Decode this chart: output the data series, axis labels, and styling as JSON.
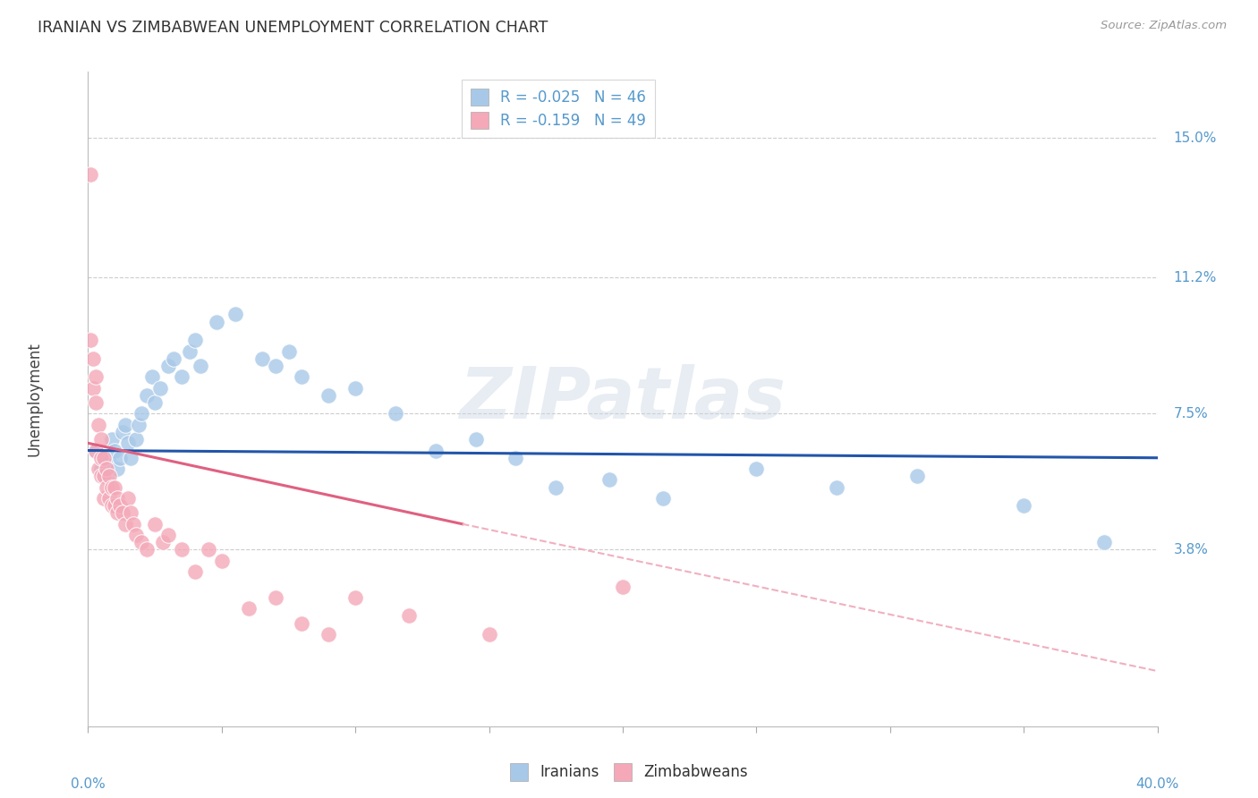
{
  "title": "IRANIAN VS ZIMBABWEAN UNEMPLOYMENT CORRELATION CHART",
  "source": "Source: ZipAtlas.com",
  "ylabel": "Unemployment",
  "ytick_labels": [
    "15.0%",
    "11.2%",
    "7.5%",
    "3.8%"
  ],
  "ytick_values": [
    0.15,
    0.112,
    0.075,
    0.038
  ],
  "xlim": [
    0.0,
    0.4
  ],
  "ylim": [
    -0.01,
    0.168
  ],
  "legend_line1": "R = -0.025   N = 46",
  "legend_line2": "R = -0.159   N = 49",
  "watermark": "ZIPatlas",
  "iranian_color": "#a8c8e8",
  "zimbabwean_color": "#f4a8b8",
  "iranian_line_color": "#2255aa",
  "zimbabwean_line_solid_color": "#e06080",
  "zimbabwean_line_dashed_color": "#f0b0c0",
  "background_color": "#ffffff",
  "grid_color": "#cccccc",
  "title_color": "#333333",
  "axis_label_color": "#5599cc",
  "iranian_line_start_y": 0.065,
  "iranian_line_end_y": 0.063,
  "zimbabwean_line_start_y": 0.067,
  "zimbabwean_line_solid_end_x": 0.14,
  "zimbabwean_line_solid_end_y": 0.045,
  "zimbabwean_line_dashed_end_y": 0.005,
  "iranians_x": [
    0.003,
    0.005,
    0.006,
    0.007,
    0.008,
    0.009,
    0.01,
    0.011,
    0.012,
    0.013,
    0.014,
    0.015,
    0.016,
    0.018,
    0.019,
    0.02,
    0.022,
    0.024,
    0.025,
    0.027,
    0.03,
    0.032,
    0.035,
    0.038,
    0.04,
    0.042,
    0.048,
    0.055,
    0.065,
    0.07,
    0.075,
    0.08,
    0.09,
    0.1,
    0.115,
    0.13,
    0.145,
    0.16,
    0.175,
    0.195,
    0.215,
    0.25,
    0.28,
    0.31,
    0.35,
    0.38
  ],
  "iranians_y": [
    0.065,
    0.06,
    0.063,
    0.058,
    0.062,
    0.068,
    0.065,
    0.06,
    0.063,
    0.07,
    0.072,
    0.067,
    0.063,
    0.068,
    0.072,
    0.075,
    0.08,
    0.085,
    0.078,
    0.082,
    0.088,
    0.09,
    0.085,
    0.092,
    0.095,
    0.088,
    0.1,
    0.102,
    0.09,
    0.088,
    0.092,
    0.085,
    0.08,
    0.082,
    0.075,
    0.065,
    0.068,
    0.063,
    0.055,
    0.057,
    0.052,
    0.06,
    0.055,
    0.058,
    0.05,
    0.04
  ],
  "zimbabweans_x": [
    0.001,
    0.001,
    0.002,
    0.002,
    0.003,
    0.003,
    0.003,
    0.004,
    0.004,
    0.005,
    0.005,
    0.005,
    0.006,
    0.006,
    0.006,
    0.007,
    0.007,
    0.008,
    0.008,
    0.009,
    0.009,
    0.01,
    0.01,
    0.011,
    0.011,
    0.012,
    0.013,
    0.014,
    0.015,
    0.016,
    0.017,
    0.018,
    0.02,
    0.022,
    0.025,
    0.028,
    0.03,
    0.035,
    0.04,
    0.045,
    0.05,
    0.06,
    0.07,
    0.08,
    0.09,
    0.1,
    0.12,
    0.15,
    0.2
  ],
  "zimbabweans_y": [
    0.14,
    0.095,
    0.09,
    0.082,
    0.085,
    0.078,
    0.065,
    0.072,
    0.06,
    0.068,
    0.063,
    0.058,
    0.063,
    0.058,
    0.052,
    0.06,
    0.055,
    0.058,
    0.052,
    0.055,
    0.05,
    0.055,
    0.05,
    0.052,
    0.048,
    0.05,
    0.048,
    0.045,
    0.052,
    0.048,
    0.045,
    0.042,
    0.04,
    0.038,
    0.045,
    0.04,
    0.042,
    0.038,
    0.032,
    0.038,
    0.035,
    0.022,
    0.025,
    0.018,
    0.015,
    0.025,
    0.02,
    0.015,
    0.028
  ]
}
